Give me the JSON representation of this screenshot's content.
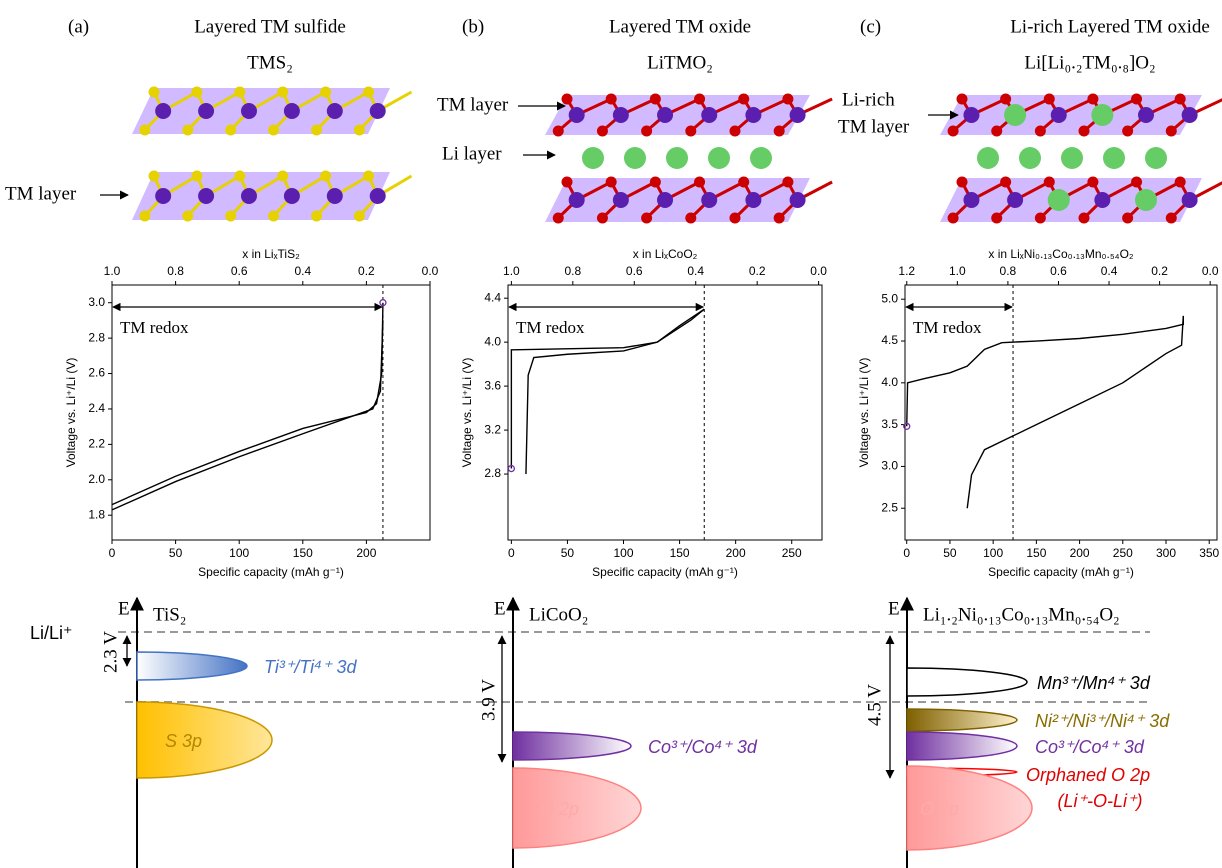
{
  "panels": [
    {
      "label": "(a)",
      "title": "Layered TM sulfide",
      "formula": "TMS₂",
      "layer_labels": [
        "TM layer"
      ]
    },
    {
      "label": "(b)",
      "title": "Layered TM oxide",
      "formula": "LiTMO₂",
      "layer_labels": [
        "TM layer",
        "Li layer"
      ]
    },
    {
      "label": "(c)",
      "title": "Li-rich Layered TM oxide",
      "formula": "Li[Li₀.₂TM₀.₈]O₂",
      "layer_labels": [
        "Li-rich",
        "TM layer"
      ]
    }
  ],
  "chart_data": [
    {
      "type": "line",
      "xlabel": "Specific capacity (mAh g⁻¹)",
      "ylabel": "Voltage vs. Li⁺/Li (V)",
      "x2label": "x in LiₓTiS₂",
      "annotation": "TM redox",
      "xlim": [
        0,
        250
      ],
      "xticks": [
        0,
        50,
        100,
        150,
        200
      ],
      "ylim": [
        1.66,
        3.1
      ],
      "yticks": [
        1.8,
        {
          "value": 2.0,
          "label": "2.0"
        },
        2.2,
        2.4,
        2.6,
        2.8,
        {
          "value": 3.0,
          "label": "3.0"
        }
      ],
      "x2lim": [
        1.0,
        0.0
      ],
      "x2ticks": [
        {
          "value": 1.0,
          "label": "1.0"
        },
        0.8,
        0.6,
        0.4,
        0.2,
        {
          "value": 0.0,
          "label": "0.0"
        }
      ],
      "reference_x": 213,
      "marker": {
        "x": 213,
        "y": 3.0,
        "color": "#7030a0"
      },
      "series": [
        {
          "color": "#000000",
          "x": [
            0,
            50,
            100,
            150,
            200,
            208,
            212,
            213
          ],
          "values": [
            1.86,
            2.02,
            2.16,
            2.29,
            2.38,
            2.43,
            2.6,
            3.0
          ]
        },
        {
          "color": "#000000",
          "x": [
            213,
            211,
            205,
            150,
            100,
            50,
            0
          ],
          "values": [
            2.9,
            2.5,
            2.4,
            2.26,
            2.13,
            1.99,
            1.83
          ]
        }
      ]
    },
    {
      "type": "line",
      "xlabel": "Specific capacity (mAh g⁻¹)",
      "ylabel": "Voltage vs. Li⁺/Li (V)",
      "x2label": "x in LiₓCoO₂",
      "annotation": "TM redox",
      "xlim": [
        -3,
        277
      ],
      "xticks": [
        0,
        50,
        100,
        150,
        200,
        250
      ],
      "ylim": [
        2.2,
        4.52
      ],
      "yticks": [
        2.8,
        3.2,
        3.6,
        {
          "value": 4.0,
          "label": "4.0"
        },
        4.4
      ],
      "x2lim": [
        1.011,
        -0.011
      ],
      "x2ticks": [
        {
          "value": 1.0,
          "label": "1.0"
        },
        0.8,
        0.6,
        0.4,
        0.2,
        {
          "value": 0.0,
          "label": "0.0"
        }
      ],
      "reference_x": 172,
      "marker": {
        "x": 0,
        "y": 2.85,
        "color": "#7030a0"
      },
      "series": [
        {
          "color": "#000000",
          "x": [
            0,
            0,
            2,
            100,
            130,
            145,
            160,
            172
          ],
          "values": [
            2.85,
            3.93,
            3.93,
            3.95,
            4.0,
            4.1,
            4.2,
            4.3
          ]
        },
        {
          "color": "#000000",
          "x": [
            172,
            150,
            130,
            100,
            50,
            20,
            15,
            13
          ],
          "values": [
            4.3,
            4.15,
            4.0,
            3.92,
            3.89,
            3.86,
            3.7,
            2.8
          ]
        }
      ]
    },
    {
      "type": "line",
      "xlabel": "Specific capacity (mAh g⁻¹)",
      "ylabel": "Voltage vs. Li⁺/Li (V)",
      "x2label": "x in LiₓNi₀.₁₃Co₀.₁₃Mn₀.₅₄O₂",
      "annotation": "TM redox",
      "xlim": [
        -2,
        359
      ],
      "xticks": [
        0,
        50,
        100,
        150,
        200,
        250,
        300,
        350
      ],
      "ylim": [
        2.12,
        5.17
      ],
      "yticks": [
        2.5,
        {
          "value": 3.0,
          "label": "3.0"
        },
        3.5,
        {
          "value": 4.0,
          "label": "4.0"
        },
        4.5,
        {
          "value": 5.0,
          "label": "5.0"
        }
      ],
      "x2lim": [
        1.207,
        -0.027
      ],
      "x2ticks": [
        1.2,
        {
          "value": 1.0,
          "label": "1.0"
        },
        0.8,
        0.6,
        0.4,
        0.2,
        {
          "value": 0.0,
          "label": "0.0"
        }
      ],
      "reference_x": 123,
      "marker": {
        "x": 0,
        "y": 3.48,
        "color": "#7030a0"
      },
      "series": [
        {
          "color": "#000000",
          "x": [
            0,
            1,
            20,
            50,
            70,
            90,
            110,
            150,
            200,
            250,
            300,
            320,
            320
          ],
          "values": [
            3.48,
            4.0,
            4.05,
            4.12,
            4.2,
            4.4,
            4.48,
            4.5,
            4.53,
            4.58,
            4.65,
            4.7,
            4.8
          ]
        },
        {
          "color": "#000000",
          "x": [
            320,
            318,
            300,
            250,
            200,
            150,
            120,
            90,
            75,
            70
          ],
          "values": [
            4.8,
            4.45,
            4.35,
            4.0,
            3.75,
            3.5,
            3.35,
            3.2,
            2.9,
            2.5
          ]
        }
      ]
    }
  ],
  "energy_diagrams": [
    {
      "axis": "E",
      "compound": "TiS₂",
      "reference": "Li/Li⁺",
      "gap": "2.3 V",
      "bands": [
        "Ti³⁺/Ti⁴⁺ 3d",
        "S 3p"
      ]
    },
    {
      "axis": "E",
      "compound": "LiCoO₂",
      "gap": "3.9 V",
      "bands": [
        "Co³⁺/Co⁴⁺ 3d",
        "O 2p"
      ]
    },
    {
      "axis": "E",
      "compound": "Li₁.₂Ni₀.₁₃Co₀.₁₃Mn₀.₅₄O₂",
      "gap": "4.5 V",
      "bands": [
        "Mn³⁺/Mn⁴⁺ 3d",
        "Ni²⁺/Ni³⁺/Ni⁴⁺ 3d",
        "Co³⁺/Co⁴⁺ 3d",
        "Orphaned O 2p",
        "(Li⁺-O-Li⁺)",
        "O 2p"
      ]
    }
  ]
}
